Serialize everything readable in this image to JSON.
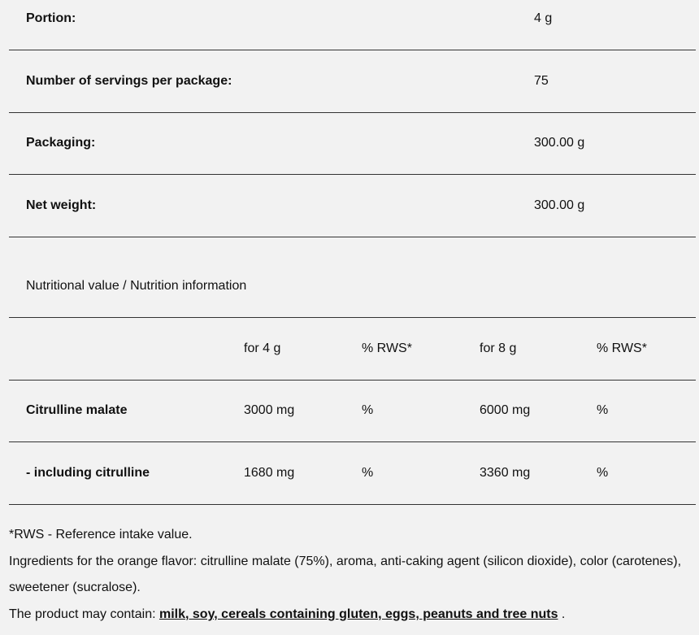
{
  "specs": [
    {
      "label": "Portion:",
      "value": "4 g"
    },
    {
      "label": "Number of servings per package:",
      "value": "75"
    },
    {
      "label": "Packaging:",
      "value": "300.00 g"
    },
    {
      "label": "Net weight:",
      "value": "300.00 g"
    }
  ],
  "nutrition": {
    "title": "Nutritional value / Nutrition information",
    "headers": [
      "",
      "for 4 g",
      "% RWS*",
      "for 8 g",
      "% RWS*"
    ],
    "rows": [
      [
        "Citrulline malate",
        "3000 mg",
        "%",
        "6000 mg",
        "%"
      ],
      [
        "- including citrulline",
        "1680 mg",
        "%",
        "3360 mg",
        "%"
      ]
    ]
  },
  "footer": {
    "rws_note": "*RWS - Reference intake value.",
    "ingredients_line1": "Ingredients for the orange flavor: citrulline malate (75%), aroma, anti-caking agent (silicon dioxide), color (carotenes),",
    "ingredients_line2": "sweetener (sucralose).",
    "allergens_prefix": "The product may contain: ",
    "allergens": "milk, soy, cereals containing gluten, eggs, peanuts and tree nuts",
    "allergens_suffix": " ."
  }
}
